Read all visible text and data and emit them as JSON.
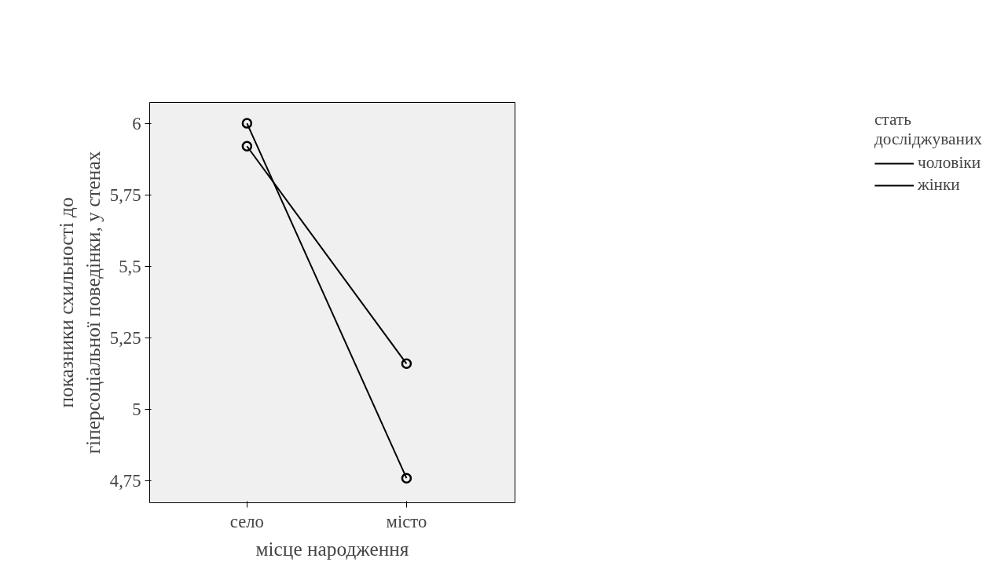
{
  "chart_data": {
    "type": "line",
    "xlabel": "місце народження",
    "ylabel": "показники схильності до\nгіперсоціальної поведінки, у стенах",
    "legend_title": "стать\nдосліджуваних",
    "legend": "right",
    "marker": "circle",
    "grid": false,
    "categories": [
      "село",
      "місто"
    ],
    "series": [
      {
        "name": "чоловіки",
        "color": "#000000",
        "values": [
          5.92,
          5.16
        ]
      },
      {
        "name": "жінки",
        "color": "#000000",
        "values": [
          6.0,
          4.76
        ]
      }
    ],
    "ylim": [
      4.674,
      6.073
    ],
    "yticks": [
      {
        "value": 4.75,
        "label": "4,75"
      },
      5,
      {
        "value": 5.25,
        "label": "5,25"
      },
      {
        "value": 5.5,
        "label": "5,5"
      },
      {
        "value": 5.75,
        "label": "5,75"
      },
      6
    ]
  }
}
